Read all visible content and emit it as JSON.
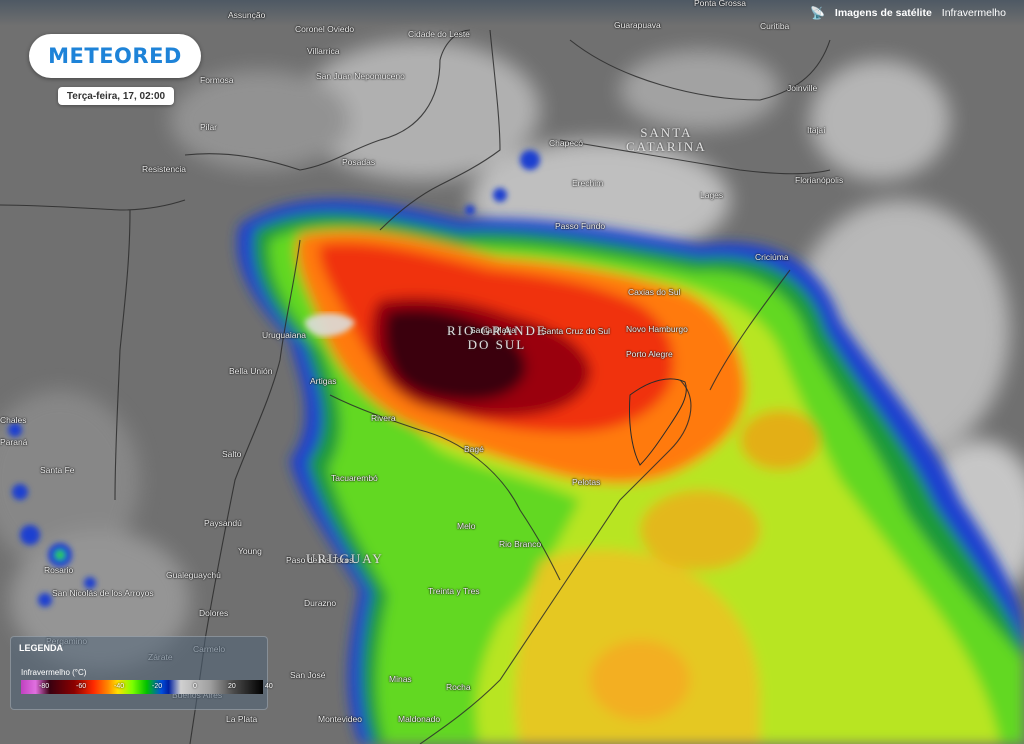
{
  "brand": {
    "name": "METEORED",
    "icon": "meteored-logo"
  },
  "datetime": "Terça-feira, 17, 02:00",
  "topnav": {
    "icon": "satellite-icon",
    "satellite_label": "Imagens de satélite",
    "mode_label": "Infravermelho"
  },
  "legend": {
    "title": "LEGENDA",
    "subtitle": "Infravermelho (°C)",
    "ticks": [
      "-80",
      "-60",
      "-40",
      "-20",
      "0",
      "20",
      "40"
    ]
  },
  "states": [
    "SANTA\nCATARINA",
    "RIO GRANDE\nDO SUL",
    "URUGUAY"
  ],
  "places": [
    "Assunção",
    "Ponta Grossa",
    "Coronel Oviedo",
    "Cidade do Leste",
    "Guarapuava",
    "Curitiba",
    "Villarrica",
    "San Juan Nepomuceno",
    "Formosa",
    "Joinville",
    "Pilar",
    "Chapecó",
    "Itajaí",
    "Posadas",
    "Resistencia",
    "Erechim",
    "Florianópolis",
    "Lages",
    "Passo Fundo",
    "Criciúma",
    "Caxias do Sul",
    "Uruguaiana",
    "Santa Maria",
    "Santa Cruz do Sul",
    "Novo Hamburgo",
    "Porto Alegre",
    "Bella Unión",
    "Artigas",
    "Rivera",
    "Bagé",
    "Salto",
    "Tacuarembó",
    "Pelotas",
    "Paysandú",
    "Melo",
    "Rio Branco",
    "Young",
    "Paso de los Toros",
    "Gualeguaychú",
    "Rosario",
    "San Nicolás de los Arroyos",
    "Treinta y Tres",
    "Dolores",
    "Durazno",
    "Pergamino",
    "Zárate",
    "Carmelo",
    "Minas",
    "Rocha",
    "San José",
    "Buenos Aires",
    "Montevideo",
    "La Plata",
    "Maldonado",
    "Santa Fe",
    "Chales",
    "Paraná"
  ]
}
